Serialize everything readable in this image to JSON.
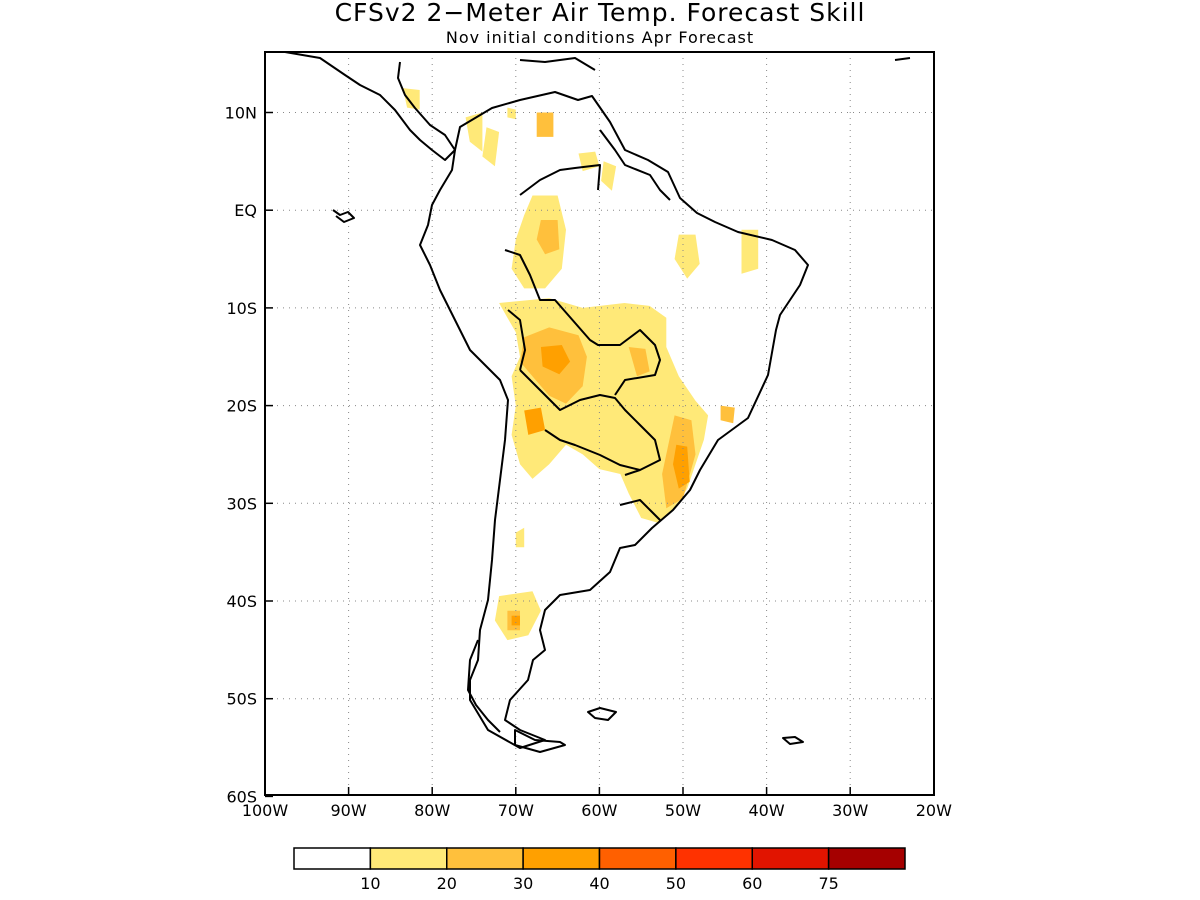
{
  "title": "CFSv2 2−Meter Air Temp. Forecast Skill",
  "subtitle": "Nov initial conditions  Apr Forecast",
  "map": {
    "lon_range": [
      -100,
      -20
    ],
    "lat_range": [
      -60,
      16
    ],
    "lon_ticks": [
      {
        "lon": -100,
        "label": "100W"
      },
      {
        "lon": -90,
        "label": "90W"
      },
      {
        "lon": -80,
        "label": "80W"
      },
      {
        "lon": -70,
        "label": "70W"
      },
      {
        "lon": -60,
        "label": "60W"
      },
      {
        "lon": -50,
        "label": "50W"
      },
      {
        "lon": -40,
        "label": "40W"
      },
      {
        "lon": -30,
        "label": "30W"
      },
      {
        "lon": -20,
        "label": "20W"
      }
    ],
    "lat_ticks": [
      {
        "lat": 10,
        "label": "10N"
      },
      {
        "lat": 0,
        "label": "EQ"
      },
      {
        "lat": -10,
        "label": "10S"
      },
      {
        "lat": -20,
        "label": "20S"
      },
      {
        "lat": -30,
        "label": "30S"
      },
      {
        "lat": -40,
        "label": "40S"
      },
      {
        "lat": -50,
        "label": "50S"
      },
      {
        "lat": -60,
        "label": "60S"
      }
    ],
    "grid": "dotted",
    "skill_regions": [
      {
        "level": 1,
        "lonlat": [
          [
            -83.5,
            12.5
          ],
          [
            -81.5,
            12.3
          ],
          [
            -81.5,
            10.3
          ],
          [
            -83,
            10.5
          ]
        ]
      },
      {
        "level": 1,
        "lonlat": [
          [
            -73.5,
            8.5
          ],
          [
            -72,
            8
          ],
          [
            -72.5,
            4.5
          ],
          [
            -74,
            5.5
          ]
        ]
      },
      {
        "level": 1,
        "lonlat": [
          [
            -76,
            9.5
          ],
          [
            -74,
            10
          ],
          [
            -74,
            6
          ],
          [
            -75.5,
            7
          ]
        ]
      },
      {
        "level": 1,
        "lonlat": [
          [
            -71,
            10.5
          ],
          [
            -70,
            10.3
          ],
          [
            -70,
            9.3
          ],
          [
            -71,
            9.5
          ]
        ]
      },
      {
        "level": 2,
        "lonlat": [
          [
            -67.5,
            10
          ],
          [
            -65.5,
            10
          ],
          [
            -65.5,
            7.5
          ],
          [
            -67.5,
            7.5
          ]
        ]
      },
      {
        "level": 1,
        "lonlat": [
          [
            -62.5,
            5.8
          ],
          [
            -60.5,
            6
          ],
          [
            -60,
            4.5
          ],
          [
            -62,
            4
          ]
        ]
      },
      {
        "level": 1,
        "lonlat": [
          [
            -59.5,
            5
          ],
          [
            -58,
            4.5
          ],
          [
            -58.5,
            2
          ],
          [
            -59.8,
            3
          ]
        ]
      },
      {
        "level": 1,
        "lonlat": [
          [
            -68,
            1.5
          ],
          [
            -65,
            1.5
          ],
          [
            -64,
            -2
          ],
          [
            -64.5,
            -6
          ],
          [
            -66.5,
            -8
          ],
          [
            -69,
            -8
          ],
          [
            -70.5,
            -6
          ],
          [
            -70,
            -3
          ],
          [
            -69,
            -0.5
          ]
        ]
      },
      {
        "level": 2,
        "lonlat": [
          [
            -67,
            -1
          ],
          [
            -65,
            -1
          ],
          [
            -64.8,
            -4
          ],
          [
            -66.5,
            -4.5
          ],
          [
            -67.5,
            -3
          ]
        ]
      },
      {
        "level": 1,
        "lonlat": [
          [
            -50.5,
            -2.5
          ],
          [
            -48.5,
            -2.5
          ],
          [
            -48,
            -5.5
          ],
          [
            -49.5,
            -7
          ],
          [
            -51,
            -5
          ]
        ]
      },
      {
        "level": 1,
        "lonlat": [
          [
            -43,
            -2
          ],
          [
            -41,
            -2
          ],
          [
            -41,
            -6
          ],
          [
            -43,
            -6.5
          ]
        ]
      },
      {
        "level": 1,
        "lonlat": [
          [
            -72,
            -9.5
          ],
          [
            -66,
            -9
          ],
          [
            -62,
            -10
          ],
          [
            -57,
            -9.5
          ],
          [
            -54,
            -9.8
          ],
          [
            -52,
            -11
          ],
          [
            -52,
            -14
          ],
          [
            -50.5,
            -17
          ],
          [
            -48.5,
            -19.5
          ],
          [
            -47,
            -21
          ],
          [
            -47.5,
            -23.5
          ],
          [
            -48.5,
            -26
          ],
          [
            -49.5,
            -28.5
          ],
          [
            -51,
            -30.5
          ],
          [
            -53,
            -32
          ],
          [
            -55,
            -31.5
          ],
          [
            -56.5,
            -29
          ],
          [
            -57.5,
            -27
          ],
          [
            -60,
            -26.5
          ],
          [
            -62,
            -25
          ],
          [
            -64,
            -24
          ],
          [
            -66,
            -26
          ],
          [
            -68,
            -27.5
          ],
          [
            -69.5,
            -26
          ],
          [
            -70.5,
            -23
          ],
          [
            -70,
            -20
          ],
          [
            -70.5,
            -17
          ],
          [
            -69.5,
            -15
          ],
          [
            -70,
            -12.5
          ],
          [
            -71,
            -11
          ]
        ]
      },
      {
        "level": 2,
        "lonlat": [
          [
            -69,
            -13
          ],
          [
            -66,
            -12
          ],
          [
            -62.5,
            -12.8
          ],
          [
            -61.5,
            -15
          ],
          [
            -62,
            -18
          ],
          [
            -64,
            -19.8
          ],
          [
            -66,
            -19
          ],
          [
            -67.5,
            -17.5
          ],
          [
            -69.5,
            -15.5
          ]
        ]
      },
      {
        "level": 3,
        "lonlat": [
          [
            -67,
            -14
          ],
          [
            -64.5,
            -13.8
          ],
          [
            -63.5,
            -15.5
          ],
          [
            -64.8,
            -16.8
          ],
          [
            -66.8,
            -16
          ]
        ]
      },
      {
        "level": 3,
        "lonlat": [
          [
            -69,
            -20.5
          ],
          [
            -67,
            -20.2
          ],
          [
            -66.5,
            -22.5
          ],
          [
            -68.5,
            -23
          ]
        ]
      },
      {
        "level": 2,
        "lonlat": [
          [
            -56.5,
            -14
          ],
          [
            -54.5,
            -14.2
          ],
          [
            -54,
            -16.5
          ],
          [
            -55.5,
            -17
          ]
        ]
      },
      {
        "level": 2,
        "lonlat": [
          [
            -51,
            -21
          ],
          [
            -49,
            -21.5
          ],
          [
            -48.5,
            -25
          ],
          [
            -50,
            -29.5
          ],
          [
            -52,
            -30.5
          ],
          [
            -52.5,
            -27
          ]
        ]
      },
      {
        "level": 3,
        "lonlat": [
          [
            -50.8,
            -24
          ],
          [
            -49.5,
            -24.2
          ],
          [
            -49.2,
            -27.8
          ],
          [
            -50.5,
            -28.5
          ],
          [
            -51.2,
            -26
          ]
        ]
      },
      {
        "level": 2,
        "lonlat": [
          [
            -45.5,
            -20
          ],
          [
            -43.8,
            -20.2
          ],
          [
            -44,
            -21.8
          ],
          [
            -45.5,
            -21.5
          ]
        ]
      },
      {
        "level": 1,
        "lonlat": [
          [
            -70,
            -33
          ],
          [
            -69,
            -32.5
          ],
          [
            -69,
            -34.5
          ],
          [
            -70,
            -34.5
          ]
        ]
      },
      {
        "level": 1,
        "lonlat": [
          [
            -72,
            -39.5
          ],
          [
            -68,
            -39
          ],
          [
            -67,
            -41
          ],
          [
            -68.5,
            -43.5
          ],
          [
            -71,
            -44
          ],
          [
            -72.5,
            -42
          ]
        ]
      },
      {
        "level": 2,
        "lonlat": [
          [
            -71,
            -41
          ],
          [
            -69.5,
            -41
          ],
          [
            -69.5,
            -43
          ],
          [
            -71,
            -43
          ]
        ]
      },
      {
        "level": 3,
        "lonlat": [
          [
            -70.5,
            -41.5
          ],
          [
            -69.5,
            -41.5
          ],
          [
            -69.5,
            -42.5
          ],
          [
            -70.5,
            -42.5
          ]
        ]
      }
    ]
  },
  "colorbar": {
    "colors": [
      "#ffffff",
      "#ffe978",
      "#ffc03c",
      "#ffa000",
      "#ff6000",
      "#ff3200",
      "#e11400",
      "#a50000"
    ],
    "labels": [
      "10",
      "20",
      "30",
      "40",
      "50",
      "60",
      "75"
    ]
  }
}
